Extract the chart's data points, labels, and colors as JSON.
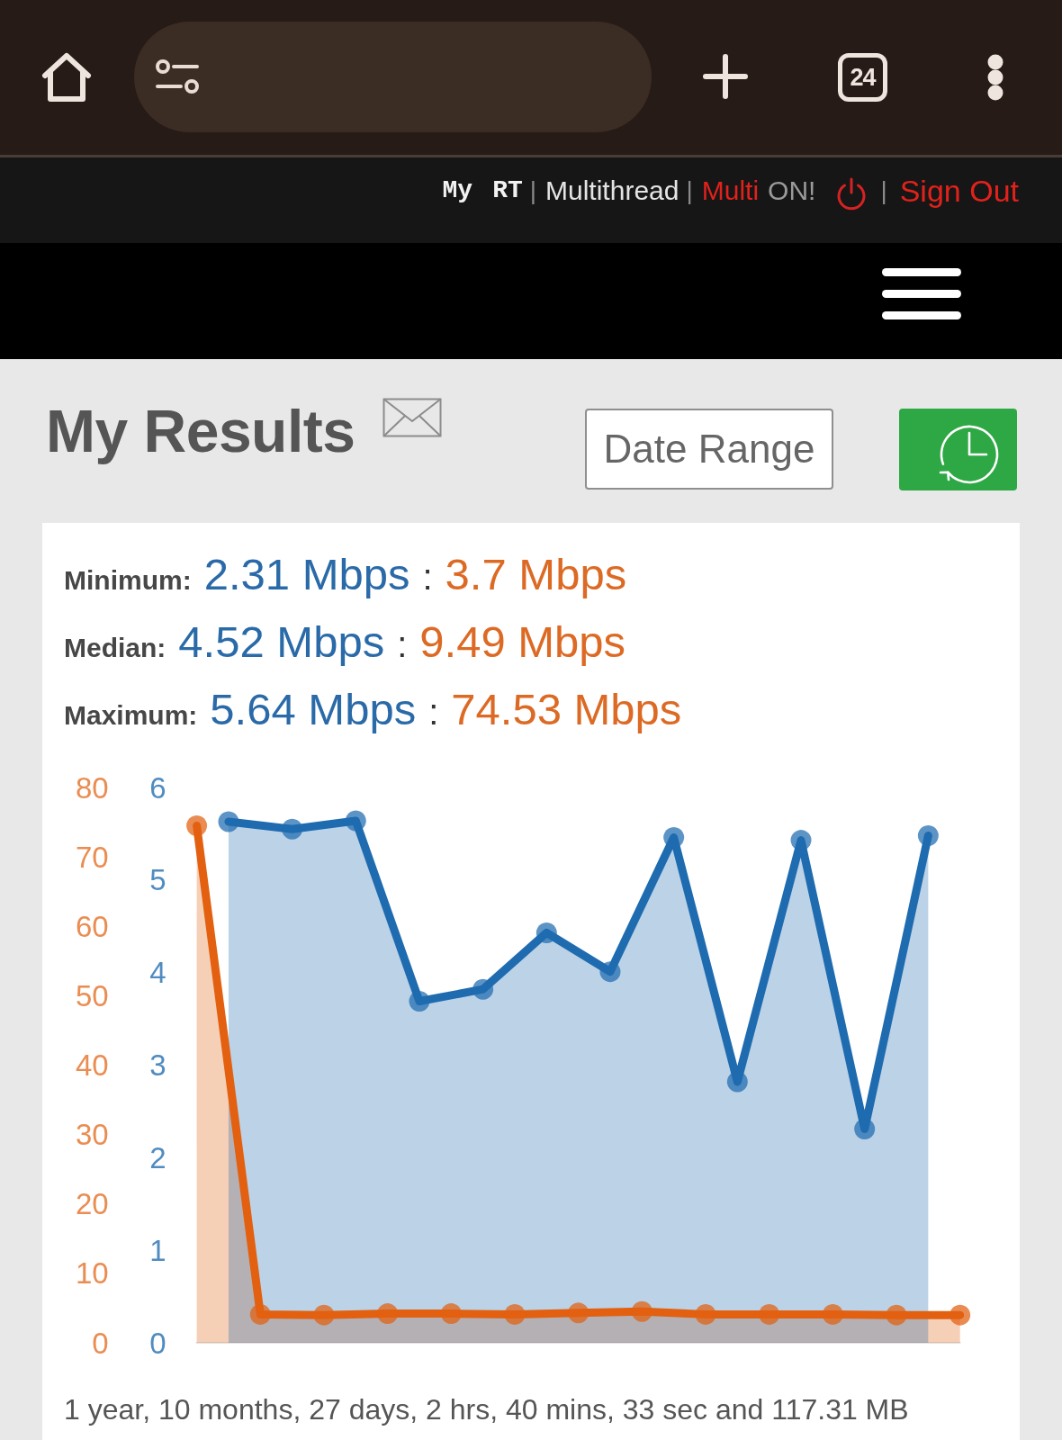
{
  "chart_data": {
    "type": "area",
    "title": "My Results",
    "categories": [
      null,
      null,
      null,
      null,
      null,
      null,
      null,
      null,
      null,
      null,
      null,
      null,
      null,
      null,
      null,
      null,
      null,
      null,
      null,
      null,
      null,
      null,
      null,
      null,
      null
    ],
    "series": [
      {
        "color": "#e2600f",
        "values": [
          74.5,
          null,
          4.1,
          null,
          4.0,
          null,
          4.2,
          null,
          4.2,
          null,
          4.1,
          null,
          4.3,
          null,
          4.5,
          null,
          4.1,
          null,
          4.1,
          null,
          4.1,
          null,
          4.0,
          null,
          4.0
        ]
      },
      {
        "color": "#1f6bb0",
        "axis": "y2",
        "values": [
          null,
          5.63,
          null,
          5.55,
          null,
          5.64,
          null,
          3.69,
          null,
          3.82,
          null,
          4.43,
          null,
          4.01,
          null,
          5.46,
          null,
          2.82,
          null,
          5.43,
          null,
          2.31,
          null,
          5.48,
          null
        ]
      }
    ],
    "ylim": [
      0,
      80
    ],
    "yticks": [
      0,
      10,
      20,
      30,
      40,
      50,
      60,
      70,
      80
    ],
    "y2lim": [
      0,
      6
    ],
    "y2ticks": [
      0,
      1,
      2,
      3,
      4,
      5,
      6
    ],
    "grid": false,
    "marker": "circle",
    "annotations": [
      "24",
      "My",
      "RT",
      "|",
      "Multithread",
      "|",
      "Multi",
      "ON!",
      "|",
      "Sign Out",
      "Date Range",
      "Minimum:",
      "2.31 Mbps",
      ":",
      "3.7 Mbps",
      "Median:",
      "4.52 Mbps",
      ":",
      "9.49 Mbps",
      "Maximum:",
      "5.64 Mbps",
      ":",
      "74.53 Mbps",
      "1 year, 10 months, 27 days, 2 hrs, 40 mins, 33 sec and 117.31 MB"
    ]
  }
}
